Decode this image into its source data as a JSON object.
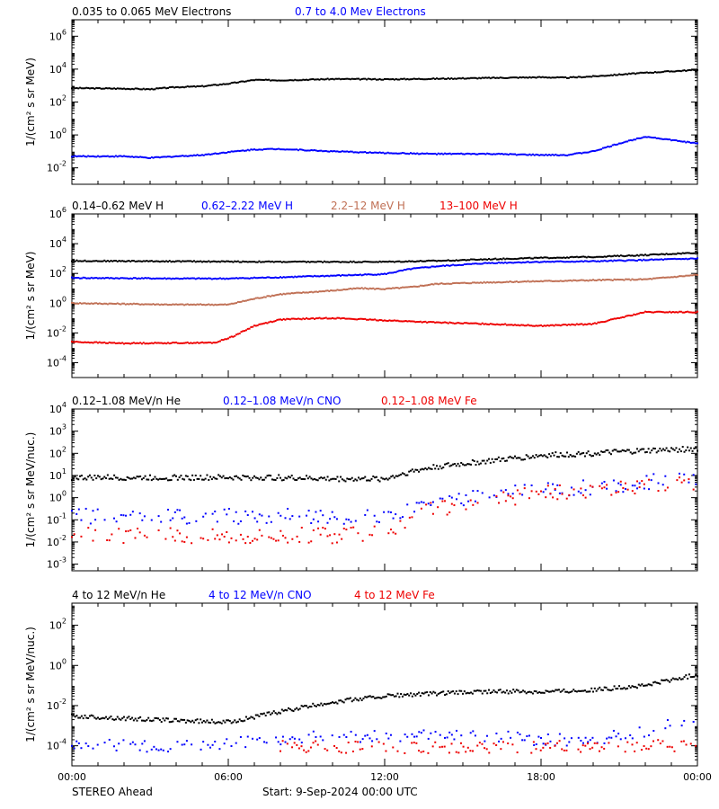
{
  "figure": {
    "instrument_label": "STEREO Ahead",
    "start_label": "Start:  9-Sep-2024 00:00 UTC"
  },
  "colors": {
    "black": "#000000",
    "blue": "#0000ff",
    "tan": "#c07055",
    "red": "#ee0000"
  },
  "chart_data": [
    {
      "type": "scatter",
      "title": "",
      "ylabel": "1/(cm² s sr MeV)",
      "xlabel": "",
      "y_scale": "log",
      "x_ticks": [
        "00:00",
        "06:00",
        "12:00",
        "18:00",
        "00:00"
      ],
      "y_tick_exponents": [
        -2,
        0,
        2,
        4,
        6
      ],
      "grid": false,
      "legend": "top-left, inline above panel",
      "series": [
        {
          "name": "0.035 to 0.065 MeV Electrons",
          "color": "black",
          "x": [
            0,
            2,
            3,
            4,
            5,
            6,
            7,
            8,
            10,
            12,
            14,
            16,
            18,
            19,
            20,
            22,
            24
          ],
          "y": [
            700,
            650,
            600,
            800,
            900,
            1300,
            2200,
            2100,
            2500,
            2400,
            2600,
            2900,
            3200,
            3000,
            3600,
            6000,
            9000
          ]
        },
        {
          "name": "0.7 to 4.0 Mev Electrons",
          "color": "blue",
          "x": [
            0,
            2,
            3,
            4,
            5,
            6,
            7,
            8,
            10,
            12,
            14,
            16,
            18,
            19,
            20,
            21,
            22,
            24
          ],
          "y": [
            0.05,
            0.05,
            0.04,
            0.05,
            0.06,
            0.09,
            0.13,
            0.14,
            0.1,
            0.08,
            0.07,
            0.07,
            0.06,
            0.06,
            0.1,
            0.3,
            0.8,
            0.3
          ]
        }
      ]
    },
    {
      "type": "scatter",
      "title": "",
      "ylabel": "1/(cm² s sr MeV)",
      "xlabel": "",
      "y_scale": "log",
      "x_ticks": [
        "00:00",
        "06:00",
        "12:00",
        "18:00",
        "00:00"
      ],
      "y_tick_exponents": [
        -4,
        -2,
        0,
        2,
        4,
        6
      ],
      "grid": false,
      "legend": "top-left, inline above panel",
      "series": [
        {
          "name": "0.14–0.62 MeV H",
          "color": "black",
          "x": [
            0,
            4,
            8,
            12,
            14,
            16,
            18,
            20,
            22,
            24
          ],
          "y": [
            700,
            650,
            600,
            600,
            700,
            900,
            1100,
            1300,
            1700,
            2500
          ]
        },
        {
          "name": "0.62–2.22 MeV H",
          "color": "blue",
          "x": [
            0,
            4,
            6,
            8,
            10,
            12,
            13,
            14,
            16,
            18,
            20,
            22,
            24
          ],
          "y": [
            50,
            45,
            45,
            55,
            70,
            90,
            200,
            300,
            500,
            600,
            650,
            800,
            1000
          ]
        },
        {
          "name": "2.2–12 MeV H",
          "color": "tan",
          "x": [
            0,
            4,
            6,
            7,
            8,
            10,
            11,
            12,
            13,
            14,
            16,
            18,
            20,
            22,
            24
          ],
          "y": [
            1,
            0.8,
            0.8,
            2,
            4,
            7,
            10,
            9,
            12,
            20,
            25,
            30,
            35,
            40,
            80
          ]
        },
        {
          "name": "13–100 MeV H",
          "color": "red",
          "x": [
            0,
            2,
            5.5,
            6.2,
            7,
            8,
            10,
            12,
            14,
            16,
            18,
            20,
            21,
            22,
            24
          ],
          "y": [
            0.0025,
            0.002,
            0.0022,
            0.006,
            0.03,
            0.08,
            0.1,
            0.07,
            0.05,
            0.04,
            0.03,
            0.04,
            0.1,
            0.25,
            0.25
          ]
        }
      ]
    },
    {
      "type": "scatter",
      "title": "",
      "ylabel": "1/(cm² s sr MeV/nuc.)",
      "xlabel": "",
      "y_scale": "log",
      "x_ticks": [
        "00:00",
        "06:00",
        "12:00",
        "18:00",
        "00:00"
      ],
      "y_tick_exponents": [
        -3,
        -2,
        -1,
        0,
        1,
        2,
        3,
        4
      ],
      "grid": false,
      "legend": "top-left, inline above panel",
      "series": [
        {
          "name": "0.12–1.08 MeV/n He",
          "color": "black",
          "x": [
            0,
            4,
            8,
            10,
            12,
            13,
            14,
            16,
            18,
            20,
            22,
            24
          ],
          "y": [
            8,
            8,
            8,
            7,
            7,
            15,
            25,
            45,
            80,
            100,
            130,
            160
          ]
        },
        {
          "name": "0.12–1.08 MeV/n CNO",
          "color": "blue",
          "x": [
            0,
            4,
            8,
            10,
            12.5,
            13,
            14,
            16,
            18,
            20,
            22,
            24
          ],
          "y": [
            0.15,
            0.14,
            0.15,
            0.15,
            0.15,
            0.3,
            0.6,
            1.2,
            2,
            3,
            5,
            6
          ]
        },
        {
          "name": "0.12–1.08 MeV Fe",
          "color": "red",
          "x": [
            0,
            4,
            8,
            10,
            12.5,
            13,
            14,
            16,
            18,
            20,
            22,
            24
          ],
          "y": [
            0.02,
            0.02,
            0.02,
            0.02,
            0.03,
            0.15,
            0.3,
            0.8,
            1.5,
            2,
            3,
            4
          ]
        }
      ]
    },
    {
      "type": "scatter",
      "title": "",
      "ylabel": "1/(cm² s sr MeV/nuc.)",
      "xlabel": "",
      "y_scale": "log",
      "x_ticks": [
        "00:00",
        "06:00",
        "12:00",
        "18:00",
        "00:00"
      ],
      "y_tick_exponents": [
        -4,
        -2,
        0,
        2
      ],
      "grid": false,
      "legend": "top-left, inline above panel",
      "series": [
        {
          "name": "4 to 12 MeV/n He",
          "color": "black",
          "x": [
            0,
            3,
            6,
            8,
            10,
            12,
            14,
            16,
            18,
            20,
            22,
            24
          ],
          "y": [
            0.003,
            0.002,
            0.0015,
            0.005,
            0.015,
            0.03,
            0.04,
            0.05,
            0.05,
            0.06,
            0.1,
            0.35
          ]
        },
        {
          "name": "4 to 12 MeV/n CNO",
          "color": "blue",
          "x": [
            0,
            4,
            8,
            10,
            12,
            16,
            18,
            20,
            22,
            24
          ],
          "y": [
            0.0001,
            0.0001,
            0.0002,
            0.0003,
            0.0003,
            0.0003,
            0.0002,
            0.0002,
            0.0005,
            0.003
          ]
        },
        {
          "name": "4 to 12 MeV Fe",
          "color": "red",
          "x": [
            8,
            12,
            16,
            20,
            24
          ],
          "y": [
            0.0001,
            8e-05,
            8e-05,
            0.0001,
            0.0001
          ]
        }
      ]
    }
  ]
}
